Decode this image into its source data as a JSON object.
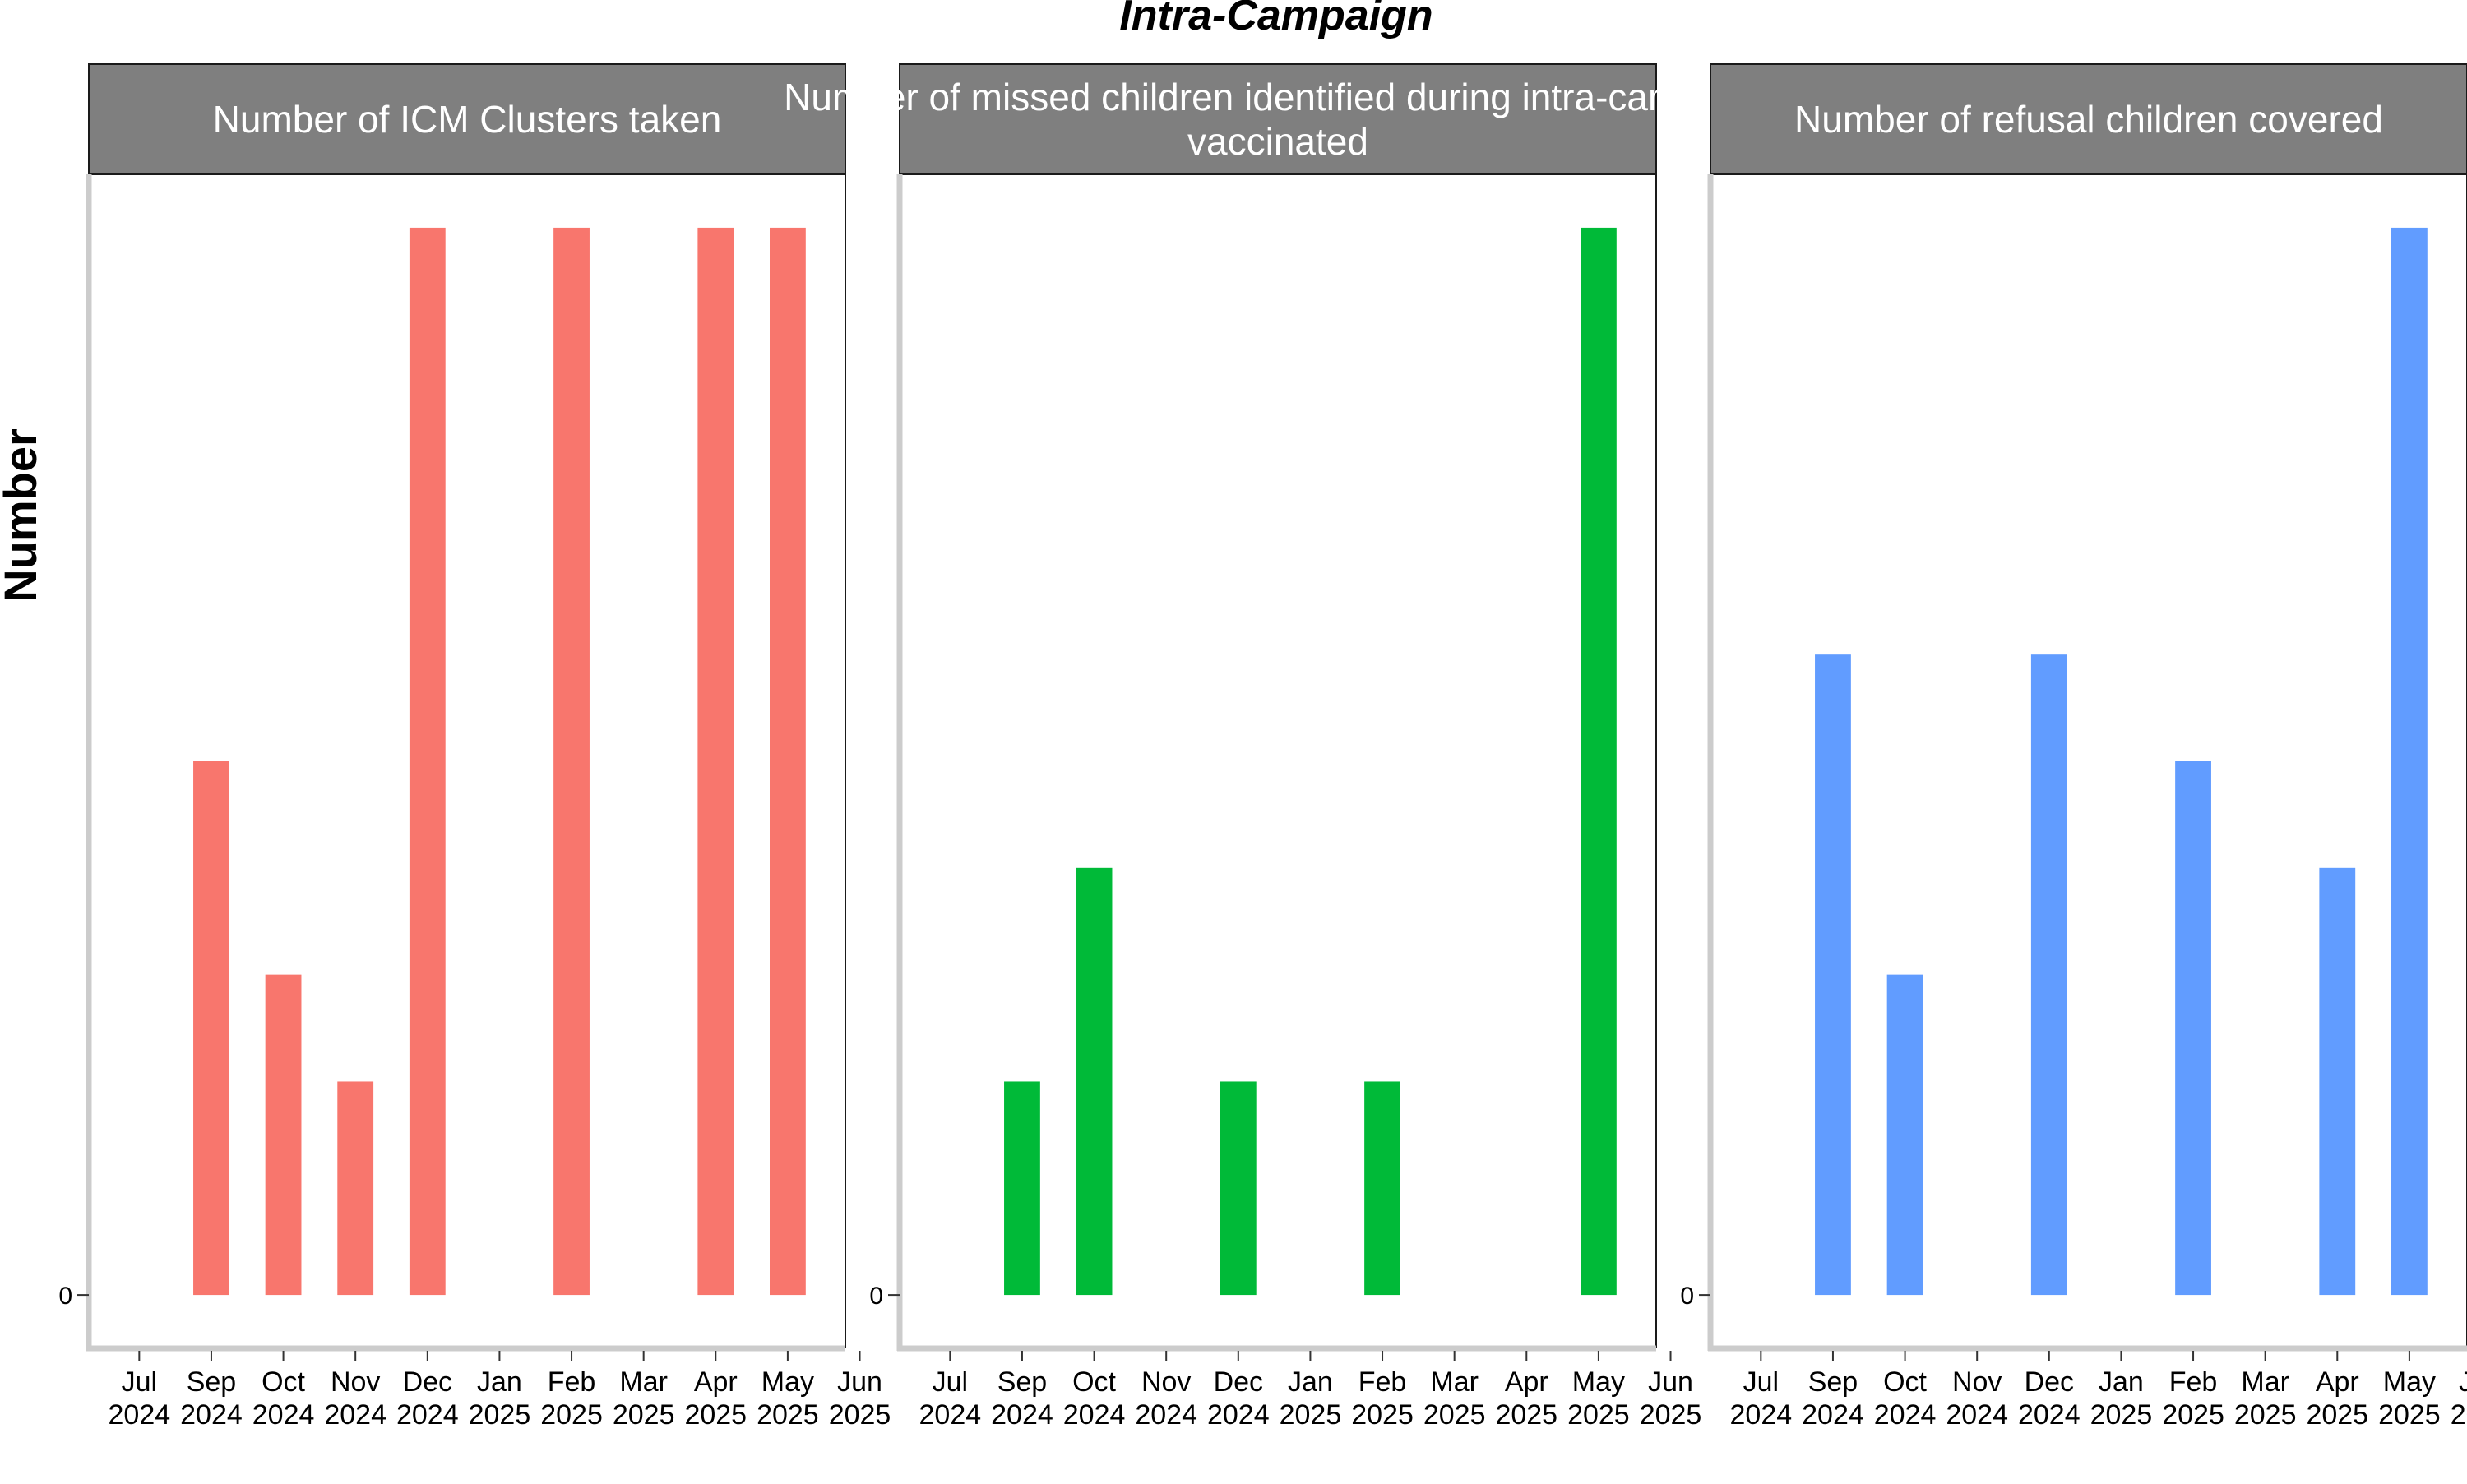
{
  "chart_data": {
    "type": "bar",
    "title": "Intra-Campaign",
    "ylabel": "Number",
    "xlabel": "",
    "categories": [
      "Jul 2024",
      "Sep 2024",
      "Oct 2024",
      "Nov 2024",
      "Dec 2024",
      "Jan 2025",
      "Feb 2025",
      "Mar 2025",
      "Apr 2025",
      "May 2025",
      "Jun 2025"
    ],
    "x_tick_labels": [
      {
        "month": "Jul",
        "year": "2024"
      },
      {
        "month": "Sep",
        "year": "2024"
      },
      {
        "month": "Oct",
        "year": "2024"
      },
      {
        "month": "Nov",
        "year": "2024"
      },
      {
        "month": "Dec",
        "year": "2024"
      },
      {
        "month": "Jan",
        "year": "2025"
      },
      {
        "month": "Feb",
        "year": "2025"
      },
      {
        "month": "Mar",
        "year": "2025"
      },
      {
        "month": "Apr",
        "year": "2025"
      },
      {
        "month": "May",
        "year": "2025"
      },
      {
        "month": "Jun",
        "year": "2025"
      }
    ],
    "y_tick_labels": [
      "0"
    ],
    "grid": false,
    "legend": "none",
    "panels": [
      {
        "title_lines": [
          "Number of ICM Clusters taken"
        ],
        "color": "#F8766D",
        "values": [
          0,
          5,
          3,
          2,
          10,
          0,
          10,
          0,
          10,
          10,
          0
        ],
        "ylim": [
          -0.5,
          10.5
        ]
      },
      {
        "title_lines": [
          "Number of missed children identified during intra-campaign",
          "vaccinated"
        ],
        "color": "#00BA38",
        "values": [
          0,
          2,
          4,
          0,
          2,
          0,
          2,
          0,
          0,
          10,
          0
        ],
        "ylim": [
          -0.5,
          10.5
        ]
      },
      {
        "title_lines": [
          "Number of refusal children covered"
        ],
        "color": "#619CFF",
        "values": [
          0,
          6,
          3,
          0,
          6,
          0,
          5,
          0,
          4,
          10,
          0
        ],
        "ylim": [
          -0.5,
          10.5
        ]
      }
    ]
  }
}
